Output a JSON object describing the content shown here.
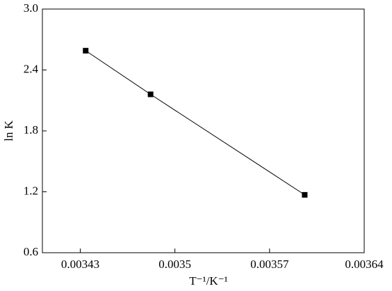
{
  "chart_data": {
    "type": "line",
    "x_label": "T⁻¹/K⁻¹",
    "y_label": "ln K",
    "x": [
      0.003434,
      0.003482,
      0.003596
    ],
    "values": [
      2.59,
      2.16,
      1.17
    ],
    "color": "#000000",
    "xlim": [
      0.003402,
      0.00364
    ],
    "xticks": [
      0.00343,
      0.0035,
      0.00357,
      0.00364
    ],
    "ylim": [
      0.6,
      3.0
    ],
    "yticks": [
      0.6,
      1.2,
      1.8,
      2.4,
      {
        "value": 3,
        "label": "3.0"
      }
    ]
  }
}
